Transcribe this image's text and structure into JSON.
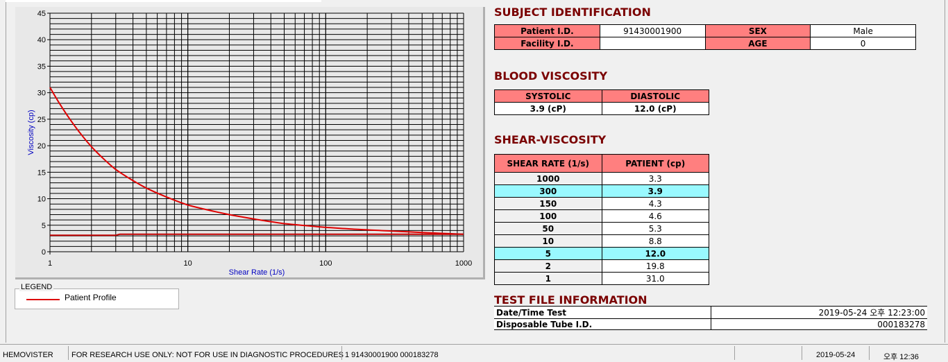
{
  "chart_data": {
    "type": "line",
    "xlabel": "Shear Rate (1/s)",
    "ylabel": "Viscosity (cp)",
    "xscale": "log",
    "xlim": [
      1,
      1000
    ],
    "ylim": [
      0,
      45
    ],
    "xticks": [
      "1",
      "10",
      "100",
      "1000"
    ],
    "yticks": [
      "0",
      "5",
      "10",
      "15",
      "20",
      "25",
      "30",
      "35",
      "40",
      "45"
    ],
    "grid": true,
    "series": [
      {
        "name": "Patient Profile",
        "color": "#e00000",
        "x": [
          1,
          2,
          3,
          5,
          10,
          20,
          50,
          100,
          150,
          300,
          1000
        ],
        "y": [
          31.0,
          19.8,
          15.5,
          12.0,
          8.8,
          7.0,
          5.3,
          4.6,
          4.3,
          3.9,
          3.3
        ]
      },
      {
        "color": "#c00000",
        "x": [
          1,
          3,
          3.2,
          1000
        ],
        "y": [
          3.1,
          3.1,
          3.3,
          3.3
        ]
      }
    ]
  },
  "legend": {
    "title": "LEGEND",
    "items": [
      "Patient Profile"
    ]
  },
  "subject": {
    "title": "SUBJECT IDENTIFICATION",
    "patient_id_label": "Patient I.D.",
    "patient_id": "91430001900",
    "sex_label": "SEX",
    "sex": "Male",
    "facility_label": "Facility I.D.",
    "facility": "",
    "age_label": "AGE",
    "age": "0"
  },
  "blood": {
    "title": "BLOOD VISCOSITY",
    "systolic_label": "SYSTOLIC",
    "diastolic_label": "DIASTOLIC",
    "systolic": "3.9 (cP)",
    "diastolic": "12.0 (cP)"
  },
  "shear": {
    "title": "SHEAR-VISCOSITY",
    "col1": "SHEAR RATE (1/s)",
    "col2": "PATIENT (cp)",
    "rows": [
      [
        "1000",
        "3.3"
      ],
      [
        "300",
        "3.9"
      ],
      [
        "150",
        "4.3"
      ],
      [
        "100",
        "4.6"
      ],
      [
        "50",
        "5.3"
      ],
      [
        "10",
        "8.8"
      ],
      [
        "5",
        "12.0"
      ],
      [
        "2",
        "19.8"
      ],
      [
        "1",
        "31.0"
      ]
    ],
    "highlight_color": "#99f9ff"
  },
  "testfile": {
    "title": "TEST FILE INFORMATION",
    "date_label": "Date/Time Test",
    "date": "2019-05-24   오후 12:23:00",
    "tube_label": "Disposable Tube I.D.",
    "tube": "000183278"
  },
  "status": {
    "app": "HEMOVISTER",
    "notice": "FOR RESEARCH USE ONLY: NOT FOR USE IN DIAGNOSTIC PROCEDURES",
    "record": "1  91430001900  000183278",
    "blank": "",
    "date": "2019-05-24",
    "time": "오후 12:36"
  }
}
